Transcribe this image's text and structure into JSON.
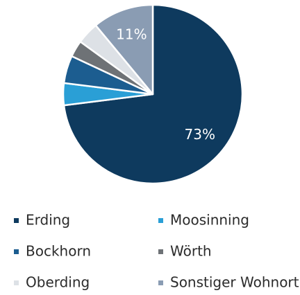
{
  "chart_data": {
    "type": "pie",
    "categories": [
      "Erding",
      "Moosinning",
      "Bockhorn",
      "Wörth",
      "Oberding",
      "Sonstiger Wohnort"
    ],
    "values": [
      73,
      4,
      5,
      3,
      4,
      11
    ],
    "value_labels": [
      "73%",
      null,
      null,
      null,
      null,
      "11%"
    ],
    "colors": [
      "#0e3a5e",
      "#2a9fd6",
      "#1c5d90",
      "#6e7276",
      "#dde1e6",
      "#8a9cb3"
    ],
    "legend": "bottom"
  }
}
